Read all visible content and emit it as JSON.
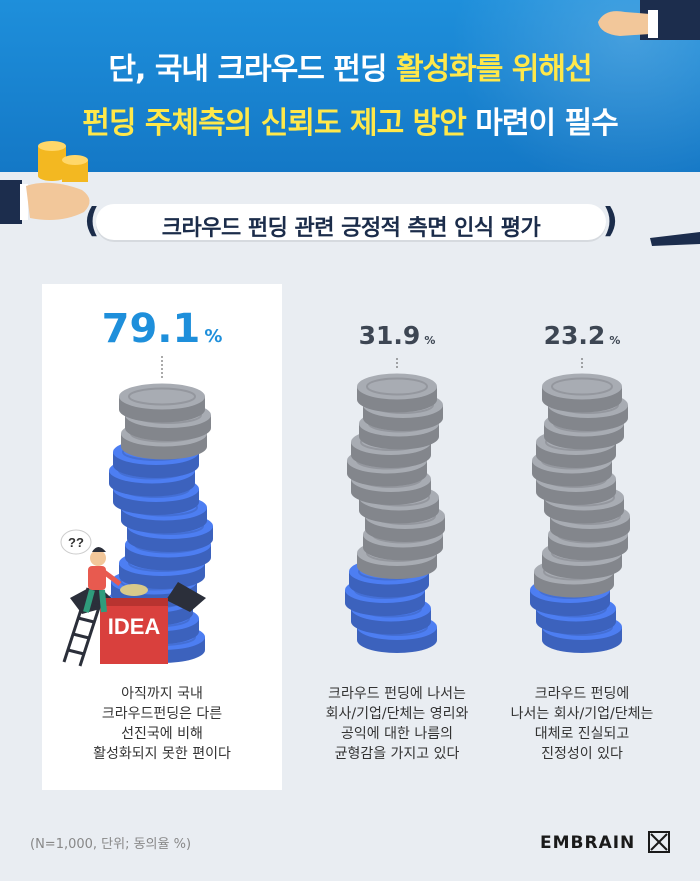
{
  "header": {
    "title_line1_a": "단, 국내 크라우드 펀딩 ",
    "title_line1_b": "활성화를 위해선",
    "title_line2_a": "펀딩 주체측의 신뢰도 제고 방안",
    "title_line2_b": " 마련이 필수"
  },
  "subtitle": "크라우드 펀딩 관련 긍정적 측면 인식 평가",
  "illustration": {
    "box_label": "IDEA",
    "bubble_text": "??"
  },
  "colors": {
    "primary": "#1e8fdb",
    "highlight": "#ffe84a",
    "coin_blue": "#4d7ef2",
    "coin_gray": "#a8acb3",
    "value_dark": "#3d4653"
  },
  "chart_data": {
    "type": "bar",
    "title": "크라우드 펀딩 관련 긍정적 측면 인식 평가",
    "unit": "%",
    "ylim": [
      0,
      100
    ],
    "categories": [
      "아직까지 국내 크라우드펀딩은 다른 선진국에 비해 활성화되지 못한 편이다",
      "크라우드 펀딩에 나서는 회사/기업/단체는 영리와 공익에 대한 나름의 균형감을 가지고 있다",
      "크라우드 펀딩에 나서는 회사/기업/단체는 대체로 진실되고 진정성이 있다"
    ],
    "values": [
      79.1,
      31.9,
      23.2
    ],
    "value_labels": [
      "79.1",
      "31.9",
      "23.2"
    ],
    "caption_lines": [
      [
        "아직까지 국내",
        "크라우드펀딩은 다른",
        "선진국에 비해",
        "활성화되지 못한 편이다"
      ],
      [
        "크라우드 펀딩에 나서는",
        "회사/기업/단체는 영리와",
        "공익에 대한 나름의",
        "균형감을 가지고 있다"
      ],
      [
        "크라우드 펀딩에",
        "나서는 회사/기업/단체는",
        "대체로 진실되고",
        "진정성이 있다"
      ]
    ]
  },
  "footnote": "(N=1,000, 단위; 동의율 %)",
  "brand": "EMBRAIN"
}
